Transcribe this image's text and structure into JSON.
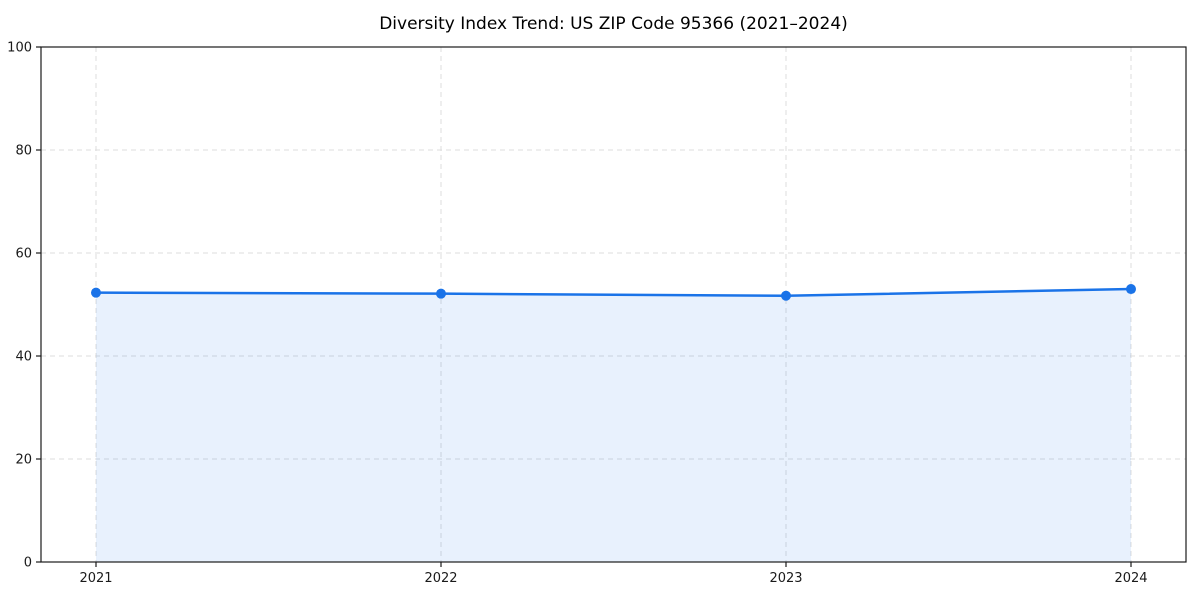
{
  "chart_data": {
    "type": "area",
    "title": "Diversity Index Trend: US ZIP Code 95366 (2021–2024)",
    "categories": [
      "2021",
      "2022",
      "2023",
      "2024"
    ],
    "series": [
      {
        "name": "Diversity Index",
        "values": [
          52.3,
          52.1,
          51.7,
          53.0
        ]
      }
    ],
    "xlabel": "",
    "ylabel": "",
    "ylim": [
      0,
      100
    ],
    "yticks": [
      0,
      20,
      40,
      60,
      80,
      100
    ],
    "grid": true,
    "grid_style": "dashed",
    "legend_position": "none",
    "colors": {
      "line": "#1a73e8",
      "marker": "#1a73e8",
      "fill": "#1a73e8",
      "fill_opacity": 0.1,
      "grid": "#dcdcdc",
      "spine": "#1a1a1a",
      "tick_text": "#1a1a1a",
      "title_text": "#000000",
      "background": "#ffffff"
    }
  }
}
